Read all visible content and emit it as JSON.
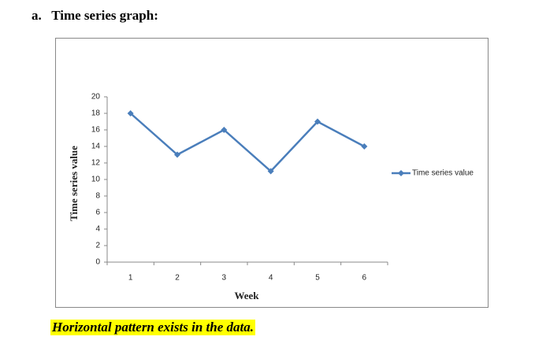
{
  "heading": "a.   Time series graph:",
  "chart_data": {
    "type": "line",
    "categories": [
      "1",
      "2",
      "3",
      "4",
      "5",
      "6"
    ],
    "series": [
      {
        "name": "Time series value",
        "color": "#4a7ebb",
        "values": [
          18,
          13,
          16,
          11,
          17,
          14
        ]
      }
    ],
    "ylim": [
      0,
      20
    ],
    "yticks": [
      0,
      2,
      4,
      6,
      8,
      10,
      12,
      14,
      16,
      18,
      20
    ],
    "xlabel": "Week",
    "ylabel": "Time series value",
    "legend": "right"
  },
  "note": "Horizontal pattern exists in the data."
}
